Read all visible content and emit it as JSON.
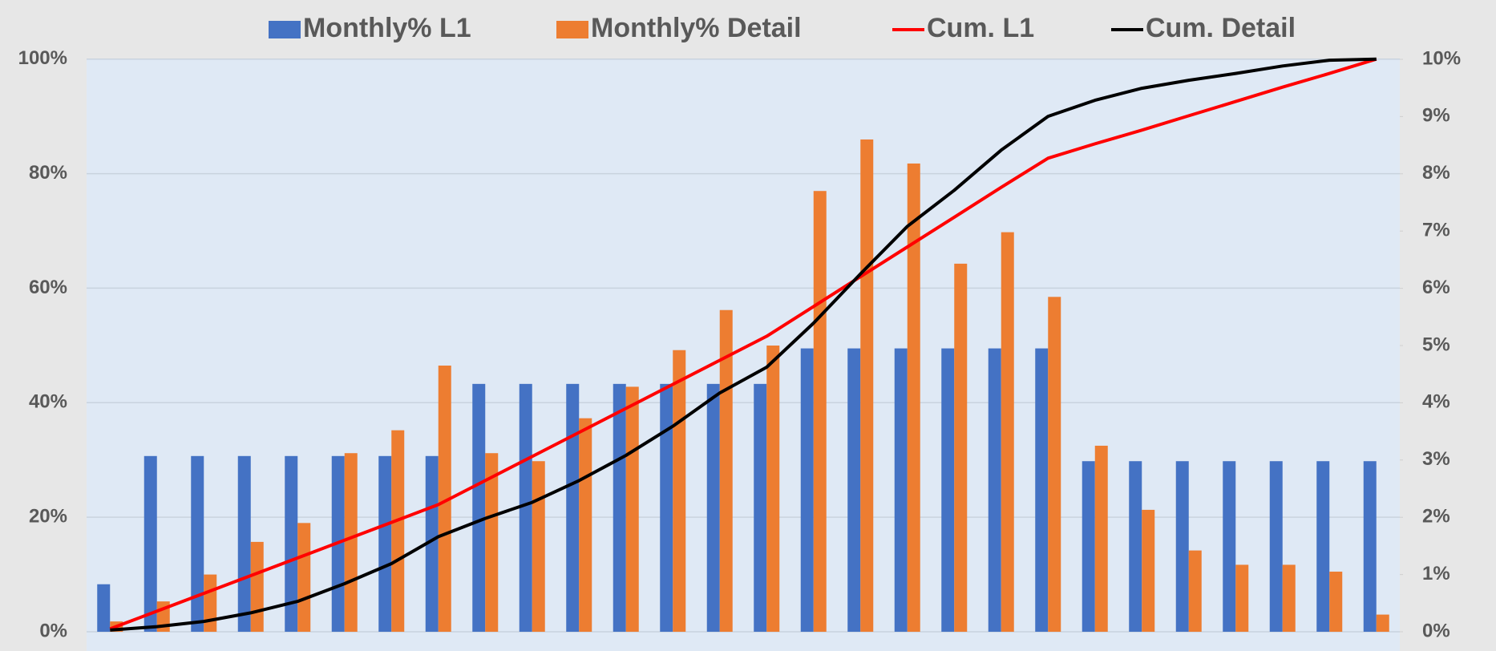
{
  "chart_data": {
    "type": "combo",
    "categories": [
      null,
      null,
      null,
      null,
      null,
      null,
      null,
      null,
      null,
      null,
      null,
      null,
      null,
      null,
      null,
      null,
      null,
      null,
      null,
      null,
      null,
      null,
      null,
      null,
      null,
      null,
      null,
      null
    ],
    "series": [
      {
        "name": "Monthly% L1",
        "type": "bar",
        "axis": "y2",
        "color": "#4472c4",
        "values": [
          0.83,
          3.07,
          3.07,
          3.07,
          3.07,
          3.07,
          3.07,
          3.07,
          4.33,
          4.33,
          4.33,
          4.33,
          4.33,
          4.33,
          4.33,
          4.95,
          4.95,
          4.95,
          4.95,
          4.95,
          4.95,
          2.98,
          2.98,
          2.98,
          2.98,
          2.98,
          2.98,
          2.98
        ]
      },
      {
        "name": "Monthly% Detail",
        "type": "bar",
        "axis": "y2",
        "color": "#ed7d31",
        "values": [
          0.18,
          0.53,
          1.0,
          1.57,
          1.9,
          3.12,
          3.52,
          4.65,
          3.12,
          2.98,
          3.73,
          4.28,
          4.92,
          5.62,
          5.0,
          7.7,
          8.6,
          8.18,
          6.43,
          6.98,
          5.85,
          3.25,
          2.13,
          1.42,
          1.17,
          1.17,
          1.05,
          0.3
        ]
      },
      {
        "name": "Cum. L1",
        "type": "line",
        "color": "#ff0000",
        "values": [
          0.5,
          3.6,
          6.7,
          9.8,
          12.9,
          16.0,
          19.1,
          22.2,
          26.4,
          30.6,
          34.8,
          39.0,
          43.2,
          47.4,
          51.6,
          56.8,
          62.0,
          67.2,
          72.4,
          77.6,
          82.7,
          85.2,
          87.6,
          90.1,
          92.6,
          95.1,
          97.5,
          100
        ]
      },
      {
        "name": "Cum. Detail",
        "type": "line",
        "color": "#000000",
        "values": [
          0.3,
          0.9,
          1.8,
          3.3,
          5.3,
          8.4,
          11.9,
          16.6,
          19.8,
          22.6,
          26.4,
          30.8,
          35.9,
          41.7,
          46.2,
          53.9,
          62.5,
          70.8,
          77.1,
          84.1,
          90.0,
          92.8,
          94.9,
          96.3,
          97.5,
          98.8,
          99.8,
          100
        ]
      }
    ],
    "ylim": [
      0,
      105
    ],
    "yticks": [
      {
        "value": 0,
        "label": "0%"
      },
      {
        "value": 20,
        "label": "20%"
      },
      {
        "value": 40,
        "label": "40%"
      },
      {
        "value": 60,
        "label": "60%"
      },
      {
        "value": 80,
        "label": "80%"
      },
      {
        "value": 100,
        "label": "100%"
      }
    ],
    "y2lim": [
      0,
      10
    ],
    "y2ticks": [
      {
        "value": 0,
        "label": "0%"
      },
      {
        "value": 1,
        "label": "1%"
      },
      {
        "value": 2,
        "label": "2%"
      },
      {
        "value": 3,
        "label": "3%"
      },
      {
        "value": 4,
        "label": "4%"
      },
      {
        "value": 5,
        "label": "5%"
      },
      {
        "value": 6,
        "label": "6%"
      },
      {
        "value": 7,
        "label": "7%"
      },
      {
        "value": 8,
        "label": "8%"
      },
      {
        "value": 9,
        "label": "9%"
      },
      {
        "value": 10,
        "label": "10%"
      }
    ],
    "grid": true
  }
}
